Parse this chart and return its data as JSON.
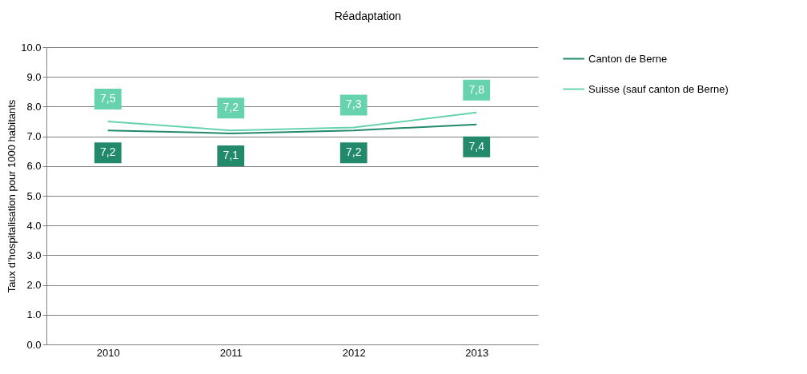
{
  "chart_data": {
    "type": "line",
    "title": "Réadaptation",
    "ylabel": "Taux d'hospitalisation pour 1000 habitants",
    "categories": [
      "2010",
      "2011",
      "2012",
      "2013"
    ],
    "series": [
      {
        "name": "Canton de Berne",
        "color": "#23896b",
        "values": [
          7.2,
          7.1,
          7.2,
          7.4
        ],
        "value_labels": [
          "7,2",
          "7,1",
          "7,2",
          "7,4"
        ]
      },
      {
        "name": "Suisse (sauf canton de Berne)",
        "color": "#66d3ae",
        "values": [
          7.5,
          7.2,
          7.3,
          7.8
        ],
        "value_labels": [
          "7,5",
          "7,2",
          "7,3",
          "7,8"
        ]
      }
    ],
    "ylim": [
      0,
      10
    ],
    "yticks": [
      {
        "value": 0,
        "label": "0.0"
      },
      {
        "value": 1,
        "label": "1.0"
      },
      {
        "value": 2,
        "label": "2.0"
      },
      {
        "value": 3,
        "label": "3.0"
      },
      {
        "value": 4,
        "label": "4.0"
      },
      {
        "value": 5,
        "label": "5.0"
      },
      {
        "value": 6,
        "label": "6.0"
      },
      {
        "value": 7,
        "label": "7.0"
      },
      {
        "value": 8,
        "label": "8.0"
      },
      {
        "value": 9,
        "label": "9.0"
      },
      {
        "value": 10,
        "label": "10.0"
      }
    ],
    "grid": "y",
    "legend": "right",
    "marker": "none",
    "line_style": "solid"
  }
}
